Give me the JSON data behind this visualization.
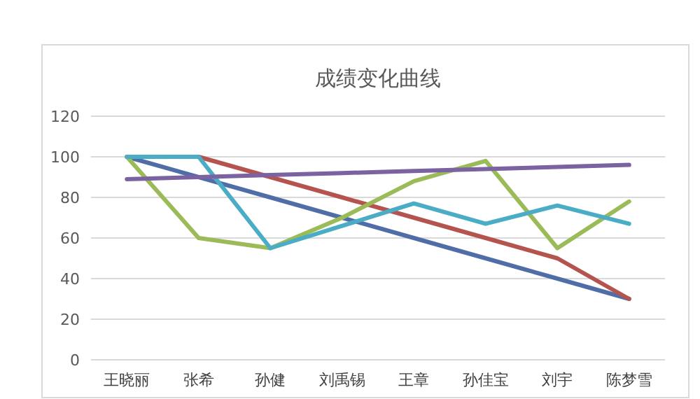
{
  "chart_data": {
    "type": "line",
    "title": "成绩变化曲线",
    "categories": [
      "王晓丽",
      "张希",
      "孙健",
      "刘禹锡",
      "王章",
      "孙佳宝",
      "刘宇",
      "陈梦雪"
    ],
    "series": [
      {
        "color": "#4f6ea8",
        "values": [
          100,
          90,
          80,
          70,
          60,
          50,
          40,
          30
        ]
      },
      {
        "color": "#b5534f",
        "values": [
          null,
          100,
          90,
          80,
          70,
          60,
          50,
          30
        ]
      },
      {
        "color": "#9bbb59",
        "values": [
          100,
          60,
          55,
          70,
          88,
          98,
          55,
          78
        ]
      },
      {
        "color": "#4bacc6",
        "values": [
          100,
          100,
          55,
          66,
          77,
          67,
          76,
          67
        ]
      },
      {
        "color": "#7b62a0",
        "values": [
          89,
          90,
          91,
          92,
          93,
          94,
          95,
          96
        ]
      }
    ],
    "ylim": [
      0,
      120
    ],
    "yticks": [
      0,
      20,
      40,
      60,
      80,
      100,
      120
    ],
    "grid": "y",
    "marker": "none",
    "line_style": "solid"
  }
}
